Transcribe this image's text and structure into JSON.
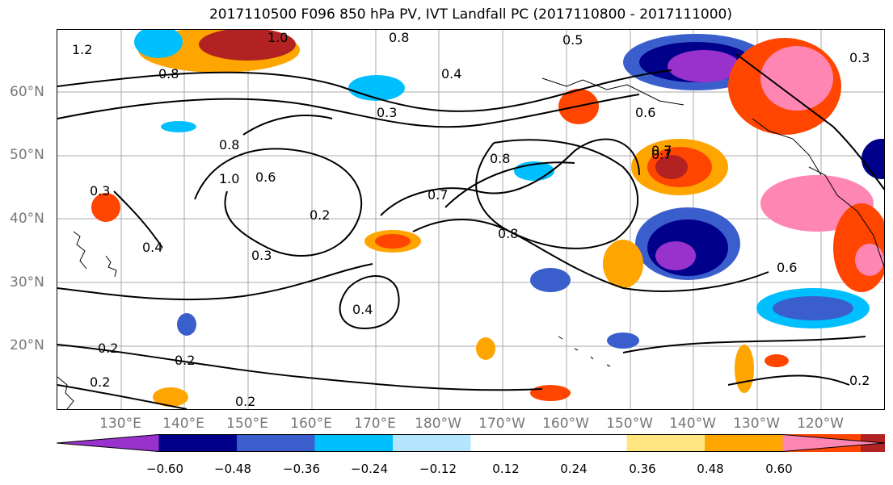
{
  "title": "2017110500 F096 850 hPa PV, IVT Landfall PC (2017110800 - 2017111000)",
  "lat_labels": [
    "60°N",
    "50°N",
    "40°N",
    "30°N",
    "20°N"
  ],
  "lon_labels": [
    "130°E",
    "140°E",
    "150°E",
    "160°E",
    "170°E",
    "180°W",
    "170°W",
    "160°W",
    "150°W",
    "140°W",
    "130°W",
    "120°W"
  ],
  "colorbar": {
    "colors": [
      "#9932cc",
      "#00008b",
      "#3a5fcd",
      "#00bfff",
      "#b3e5fc",
      "#ffffff",
      "#ffffff",
      "#ffe680",
      "#ffa500",
      "#ff4500",
      "#b22222",
      "#ff85b3"
    ],
    "tick_labels": [
      "−0.60",
      "−0.48",
      "−0.36",
      "−0.24",
      "−0.12",
      "0.12",
      "0.24",
      "0.36",
      "0.48",
      "0.60"
    ]
  },
  "contour_labels": [
    "1.2",
    "0.8",
    "1.0",
    "0.8",
    "0.5",
    "0.4",
    "0.3",
    "0.6",
    "0.3",
    "0.7",
    "0.8",
    "1.0",
    "0.6",
    "0.8",
    "0.7",
    "0.4",
    "0.2",
    "0.3",
    "0.8",
    "0.4",
    "0.2",
    "0.2",
    "0.2",
    "0.2",
    "0.2",
    "0.7",
    "0.6",
    "0.3"
  ],
  "legend_label": ""
}
